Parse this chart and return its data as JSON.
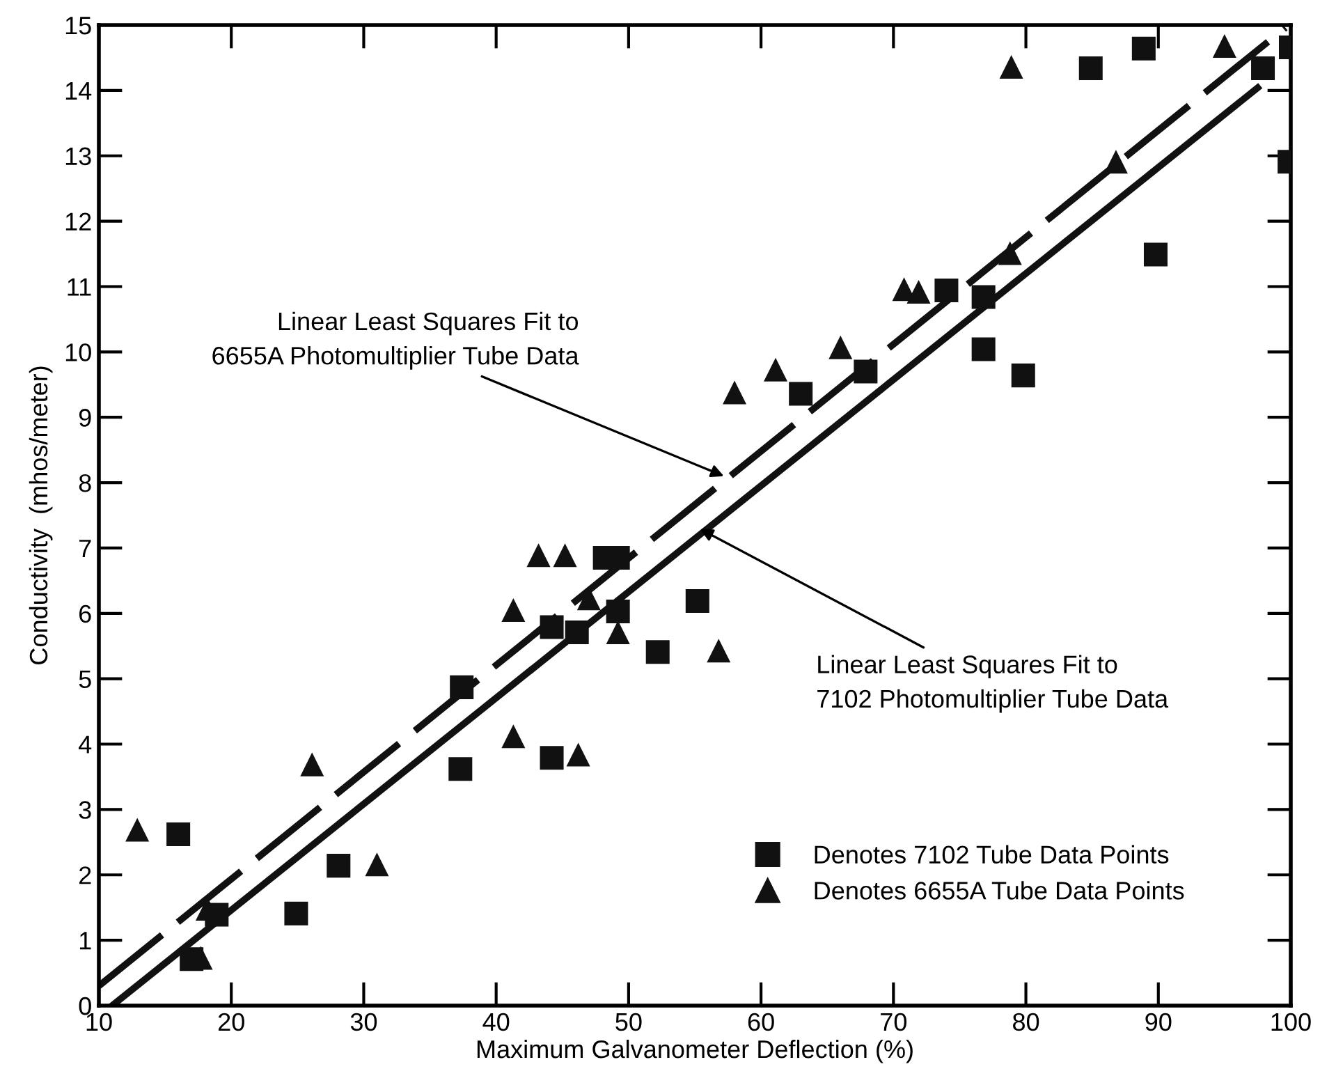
{
  "chart_data": {
    "type": "scatter",
    "xlabel": "Maximum Galvanometer Deflection (%)",
    "ylabel": "Conductivity  (mhos/meter)",
    "xlim": [
      10,
      100
    ],
    "ylim": [
      0,
      15
    ],
    "xticks": [
      10,
      20,
      30,
      40,
      50,
      60,
      70,
      80,
      90,
      100
    ],
    "yticks": [
      0,
      1,
      2,
      3,
      4,
      5,
      6,
      7,
      8,
      9,
      10,
      11,
      12,
      13,
      14,
      15
    ],
    "grid": false,
    "legend": "bottom right",
    "series": [
      {
        "name": "Denotes 7102 Tube Data Points",
        "marker": "square",
        "color": "#111111",
        "x": [
          16.0,
          17.0,
          18.9,
          24.9,
          28.1,
          37.3,
          37.4,
          44.2,
          44.2,
          46.1,
          48.2,
          49.2,
          49.2,
          52.2,
          55.2,
          63.0,
          67.9,
          74.0,
          76.8,
          76.8,
          79.8,
          84.9,
          88.9,
          89.8,
          97.9,
          99.9,
          100.0
        ],
        "values": [
          2.62,
          0.71,
          1.39,
          1.41,
          2.14,
          3.62,
          4.87,
          3.79,
          5.79,
          5.71,
          6.85,
          6.85,
          6.03,
          5.41,
          6.19,
          9.36,
          9.7,
          10.94,
          10.84,
          10.04,
          9.64,
          14.34,
          14.64,
          11.49,
          14.34,
          12.91,
          14.66
        ]
      },
      {
        "name": "Denotes 6655A Tube Data Points",
        "marker": "triangle",
        "color": "#111111",
        "x": [
          12.9,
          17.7,
          18.2,
          26.1,
          31.0,
          41.3,
          41.3,
          43.2,
          45.2,
          46.2,
          47.0,
          49.2,
          56.8,
          58.0,
          61.1,
          66.0,
          70.8,
          71.9,
          78.8,
          78.9,
          86.8,
          95.0
        ],
        "values": [
          2.69,
          0.73,
          1.48,
          3.69,
          2.16,
          6.05,
          4.12,
          6.89,
          6.89,
          3.84,
          6.23,
          5.71,
          5.43,
          9.38,
          9.73,
          10.07,
          10.96,
          10.92,
          11.51,
          14.36,
          12.91,
          14.68
        ]
      },
      {
        "type": "line",
        "line_style": "dashed",
        "color": "#111111",
        "x": [
          10,
          99.6
        ],
        "values": [
          0.3,
          14.96
        ]
      },
      {
        "type": "line",
        "line_style": "solid",
        "color": "#111111",
        "x": [
          11,
          97.5
        ],
        "values": [
          0,
          14.04
        ]
      }
    ],
    "annotations": [
      {
        "text": "Linear Least Squares Fit to\n6655A Photomultiplier Tube Data",
        "x": 57.2,
        "y": 8.1
      },
      {
        "text": "Linear Least Squares Fit to\n7102 Photomultiplier Tube Data",
        "x": 55.4,
        "y": 7.29
      }
    ]
  }
}
